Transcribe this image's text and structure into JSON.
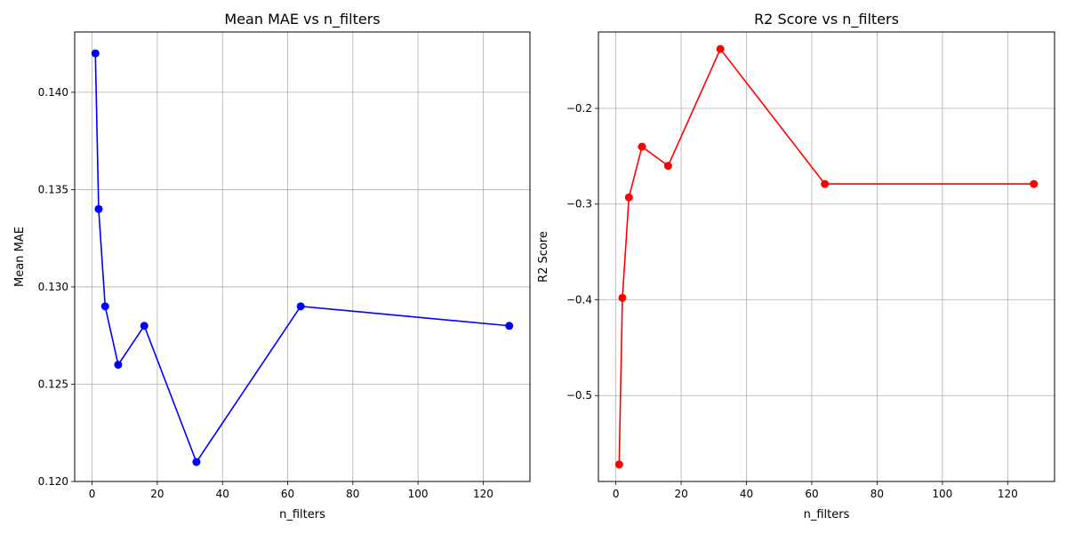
{
  "chart_data": [
    {
      "type": "line",
      "title": "Mean MAE vs n_filters",
      "xlabel": "n_filters",
      "ylabel": "Mean MAE",
      "x": [
        1,
        2,
        4,
        8,
        16,
        32,
        64,
        128
      ],
      "series": [
        {
          "values": [
            0.142,
            0.134,
            0.129,
            0.126,
            0.128,
            0.121,
            0.129,
            0.128
          ],
          "color": "#0000ff"
        }
      ],
      "xticks": [
        0,
        20,
        40,
        60,
        80,
        100,
        120
      ],
      "xtick_labels": [
        "0",
        "20",
        "40",
        "60",
        "80",
        "100",
        "120"
      ],
      "yticks": [
        0.12,
        0.125,
        0.13,
        0.135,
        0.14
      ],
      "ytick_labels": [
        "0.120",
        "0.125",
        "0.130",
        "0.135",
        "0.140"
      ],
      "xlim": [
        -5.35,
        134.35
      ],
      "ylim": [
        0.12,
        0.1431
      ],
      "grid": true,
      "marker": "circle"
    },
    {
      "type": "line",
      "title": "R2 Score vs n_filters",
      "xlabel": "n_filters",
      "ylabel": "R2 Score",
      "x": [
        1,
        2,
        4,
        8,
        16,
        32,
        64,
        128
      ],
      "series": [
        {
          "values": [
            -0.572,
            -0.398,
            -0.293,
            -0.24,
            -0.26,
            -0.138,
            -0.279,
            -0.279
          ],
          "color": "#ff0000"
        }
      ],
      "xticks": [
        0,
        20,
        40,
        60,
        80,
        100,
        120
      ],
      "xtick_labels": [
        "0",
        "20",
        "40",
        "60",
        "80",
        "100",
        "120"
      ],
      "yticks": [
        -0.5,
        -0.4,
        -0.3,
        -0.2
      ],
      "ytick_labels": [
        "−0.5",
        "−0.4",
        "−0.3",
        "−0.2"
      ],
      "xlim": [
        -5.35,
        134.35
      ],
      "ylim": [
        -0.5898,
        -0.1202
      ],
      "grid": true,
      "marker": "circle"
    }
  ]
}
